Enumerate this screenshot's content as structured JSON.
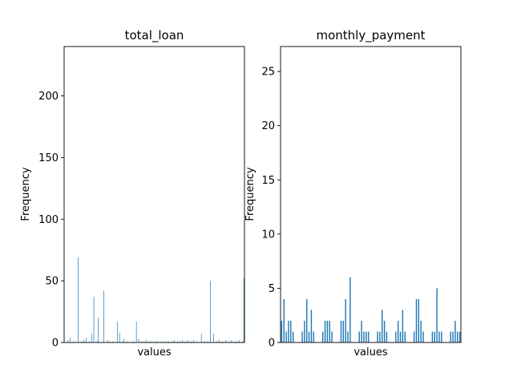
{
  "chart_data": [
    {
      "type": "bar",
      "title": "total_loan",
      "xlabel": "values",
      "ylabel": "Frequency",
      "ylim": [
        0,
        240
      ],
      "yticks": [
        0,
        50,
        100,
        150,
        200
      ],
      "bar_color": "#1f77b4",
      "values": [
        0,
        0,
        0,
        2,
        0,
        4,
        0,
        0,
        1,
        0,
        0,
        0,
        69,
        0,
        0,
        1,
        0,
        2,
        0,
        4,
        0,
        0,
        1,
        0,
        7,
        0,
        37,
        0,
        0,
        1,
        20,
        0,
        0,
        0,
        0,
        42,
        0,
        0,
        2,
        0,
        1,
        0,
        0,
        1,
        0,
        0,
        0,
        17,
        0,
        8,
        0,
        0,
        1,
        3,
        0,
        0,
        1,
        0,
        0,
        0,
        0,
        1,
        0,
        0,
        17,
        0,
        3,
        0,
        0,
        1,
        0,
        1,
        0,
        2,
        0,
        0,
        1,
        0,
        1,
        0,
        0,
        1,
        0,
        1,
        0,
        0,
        1,
        0,
        1,
        0,
        0,
        1,
        0,
        1,
        0,
        0,
        1,
        0,
        2,
        0,
        0,
        1,
        0,
        1,
        0,
        2,
        0,
        0,
        1,
        0,
        2,
        0,
        0,
        1,
        0,
        2,
        0,
        0,
        1,
        0,
        0,
        0,
        7,
        0,
        0,
        1,
        0,
        0,
        1,
        0,
        50,
        0,
        0,
        7,
        0,
        0,
        1,
        0,
        2,
        0,
        0,
        1,
        0,
        0,
        2,
        0,
        0,
        1,
        0,
        2,
        0,
        0,
        1,
        0,
        1,
        0,
        2,
        0,
        0,
        1,
        52
      ]
    },
    {
      "type": "bar",
      "title": "monthly_payment",
      "xlabel": "values",
      "ylabel": "Frequency",
      "ylim": [
        0,
        27.3
      ],
      "yticks": [
        0,
        5,
        10,
        15,
        20,
        25
      ],
      "bar_color": "#1f77b4",
      "values": [
        2,
        4,
        1,
        2,
        2,
        1,
        0,
        0,
        0,
        1,
        2,
        4,
        1,
        3,
        1,
        0,
        0,
        0,
        1,
        2,
        2,
        2,
        1,
        0,
        0,
        0,
        2,
        2,
        4,
        1,
        6,
        0,
        0,
        0,
        1,
        2,
        1,
        1,
        1,
        0,
        0,
        0,
        1,
        1,
        3,
        2,
        1,
        0,
        0,
        0,
        1,
        2,
        1,
        3,
        1,
        0,
        0,
        0,
        1,
        4,
        4,
        2,
        1,
        0,
        0,
        0,
        1,
        1,
        5,
        1,
        1,
        0,
        0,
        0,
        1,
        1,
        2,
        1,
        1
      ]
    }
  ]
}
